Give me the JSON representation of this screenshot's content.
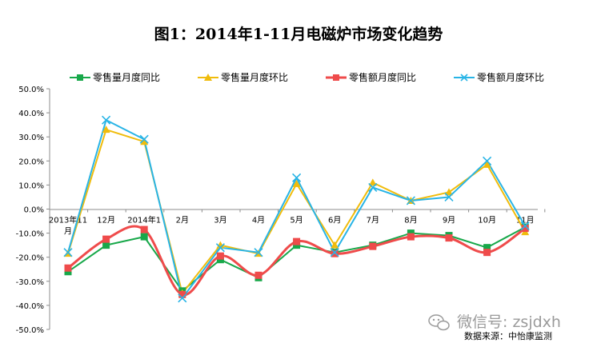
{
  "chart_data": {
    "type": "line",
    "title": "图1：2014年1-11月电磁炉市场变化趋势",
    "categories": [
      "2013年11月",
      "12月",
      "2014年1月",
      "2月",
      "3月",
      "4月",
      "5月",
      "6月",
      "7月",
      "8月",
      "9月",
      "10月",
      "11月"
    ],
    "ylim": [
      -50,
      50
    ],
    "yticks": [
      50,
      40,
      30,
      20,
      10,
      0,
      -10,
      -20,
      -30,
      -40,
      -50
    ],
    "ytick_labels": [
      "50.0%",
      "40.0%",
      "30.0%",
      "20.0%",
      "10.0%",
      "0.0%",
      "-10.0%",
      "-20.0%",
      "-30.0%",
      "-40.0%",
      "-50.0%"
    ],
    "unit": "%",
    "legend_position": "top",
    "grid": false,
    "series": [
      {
        "name": "零售量月度同比",
        "color": "#18a84a",
        "marker": "square",
        "smooth": false,
        "values": [
          -26,
          -15,
          -11.5,
          -34,
          -21,
          -28.5,
          -15,
          -18,
          -15,
          -10,
          -11,
          -16,
          -7.5
        ]
      },
      {
        "name": "零售量月度环比",
        "color": "#f0bc0c",
        "marker": "triangle",
        "smooth": false,
        "values": [
          -18.5,
          33,
          28,
          -35,
          -15,
          -18.5,
          10.5,
          -15,
          11,
          3.5,
          7,
          18.5,
          -9.5
        ]
      },
      {
        "name": "零售额月度同比",
        "color": "#ef4b4b",
        "marker": "square",
        "smooth": true,
        "values": [
          -24.5,
          -12.5,
          -8.5,
          -35.5,
          -19.5,
          -27.5,
          -13.5,
          -18.5,
          -15.5,
          -11.5,
          -12,
          -18,
          -8
        ]
      },
      {
        "name": "零售额月度环比",
        "color": "#28b4e6",
        "marker": "x",
        "smooth": false,
        "values": [
          -18,
          37,
          29,
          -37,
          -16,
          -18,
          13,
          -18,
          9,
          3.5,
          5,
          20,
          -7
        ]
      }
    ]
  },
  "source_text": "数据来源：中怡康监测",
  "watermark": {
    "text": "微信号: zsjdxh",
    "icon": "wechat-icon"
  }
}
